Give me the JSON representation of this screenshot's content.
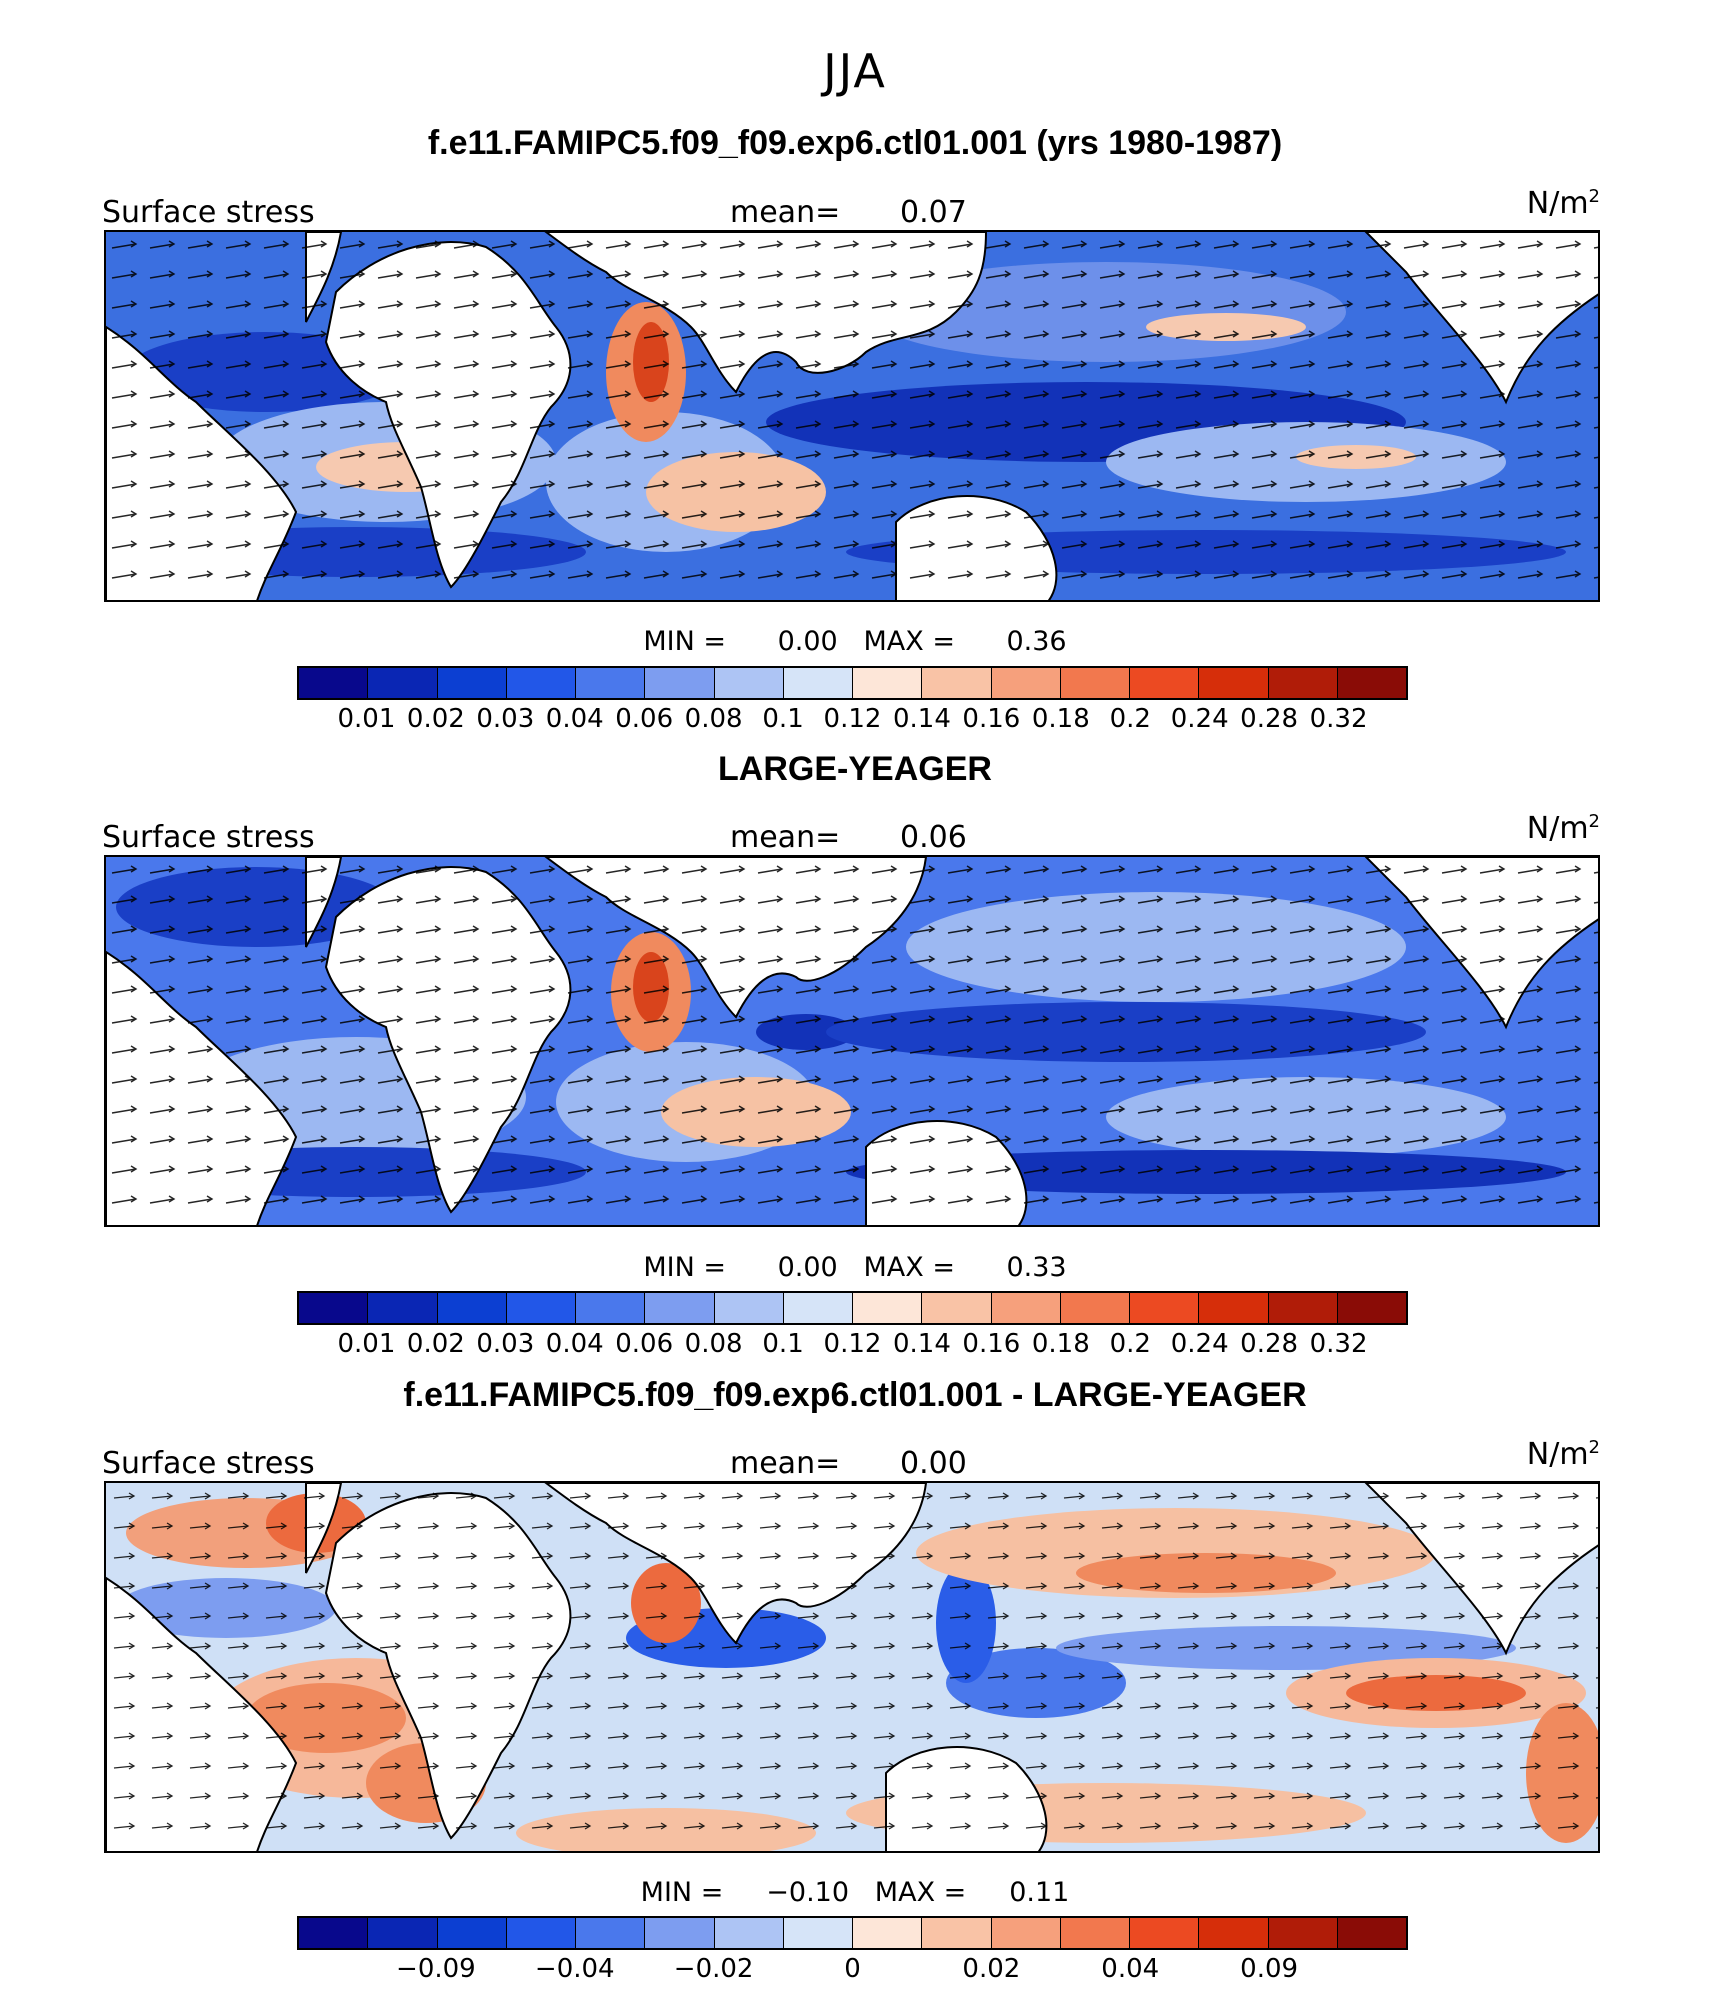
{
  "figure": {
    "season": "JJA"
  },
  "panels": [
    {
      "title": "f.e11.FAMIPC5.f09_f09.exp6.ctl01.001 (yrs 1980-1987)",
      "variable": "Surface stress",
      "mean_label": "mean=",
      "mean_value": "0.07",
      "units": "N/m",
      "units_exp": "2",
      "min_label": "MIN =",
      "min_value": "0.00",
      "max_label": "MAX =",
      "max_value": "0.36",
      "colorbar_ticks": [
        "0.01",
        "0.02",
        "0.03",
        "0.04",
        "0.06",
        "0.08",
        "0.1",
        "0.12",
        "0.14",
        "0.16",
        "0.18",
        "0.2",
        "0.24",
        "0.28",
        "0.32"
      ]
    },
    {
      "title": "LARGE-YEAGER",
      "variable": "Surface stress",
      "mean_label": "mean=",
      "mean_value": "0.06",
      "units": "N/m",
      "units_exp": "2",
      "min_label": "MIN =",
      "min_value": "0.00",
      "max_label": "MAX =",
      "max_value": "0.33",
      "colorbar_ticks": [
        "0.01",
        "0.02",
        "0.03",
        "0.04",
        "0.06",
        "0.08",
        "0.1",
        "0.12",
        "0.14",
        "0.16",
        "0.18",
        "0.2",
        "0.24",
        "0.28",
        "0.32"
      ]
    },
    {
      "title": "f.e11.FAMIPC5.f09_f09.exp6.ctl01.001 - LARGE-YEAGER",
      "variable": "Surface stress",
      "mean_label": "mean=",
      "mean_value": "0.00",
      "units": "N/m",
      "units_exp": "2",
      "min_label": "MIN =",
      "min_value": "−0.10",
      "max_label": "MAX =",
      "max_value": "0.11",
      "colorbar_ticks": [
        "−0.09",
        "−0.04",
        "−0.02",
        "0",
        "0.02",
        "0.04",
        "0.09"
      ]
    }
  ],
  "colorbar_colors": [
    "#08088c",
    "#0a26b4",
    "#0c3fd2",
    "#2257e8",
    "#4a78ec",
    "#7d9df0",
    "#adc4f4",
    "#d6e4f8",
    "#fde6d8",
    "#f9c3a6",
    "#f6a07c",
    "#f2784e",
    "#ec4a22",
    "#d62e0a",
    "#b01c08",
    "#8a0c06"
  ],
  "colors": {
    "land": "#ffffff",
    "ocean_base": "#3b6fe0",
    "diff_base": "#cfe0f6",
    "arrow": "#000000"
  }
}
